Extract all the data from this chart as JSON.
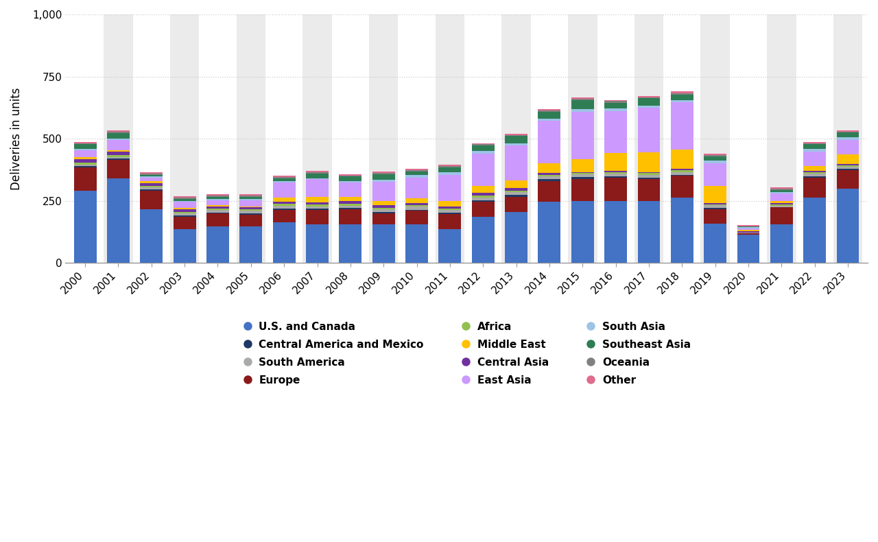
{
  "years": [
    2000,
    2001,
    2002,
    2003,
    2004,
    2005,
    2006,
    2007,
    2008,
    2009,
    2010,
    2011,
    2012,
    2013,
    2014,
    2015,
    2016,
    2017,
    2018,
    2019,
    2020,
    2021,
    2022,
    2023
  ],
  "stack_order": [
    "U.S. and Canada",
    "Europe",
    "Central America and Mexico",
    "South America",
    "Africa",
    "Central Asia",
    "Middle East",
    "East Asia",
    "South Asia",
    "Southeast Asia",
    "Oceania",
    "Other"
  ],
  "legend_order": [
    "U.S. and Canada",
    "Central America and Mexico",
    "South America",
    "Europe",
    "Africa",
    "Middle East",
    "Central Asia",
    "East Asia",
    "South Asia",
    "Southeast Asia",
    "Oceania",
    "Other"
  ],
  "colors": {
    "U.S. and Canada": "#4472C4",
    "Europe": "#8B1A1A",
    "Central America and Mexico": "#1F3864",
    "South America": "#AAAAAA",
    "Africa": "#92C050",
    "Central Asia": "#7030A0",
    "Middle East": "#FFC000",
    "East Asia": "#CC99FF",
    "South Asia": "#9DC3E6",
    "Southeast Asia": "#2E7D55",
    "Oceania": "#808080",
    "Other": "#E06C8E"
  },
  "data": {
    "U.S. and Canada": [
      290,
      340,
      215,
      135,
      148,
      147,
      162,
      155,
      155,
      155,
      154,
      136,
      185,
      205,
      245,
      248,
      248,
      250,
      262,
      158,
      113,
      155,
      262,
      298
    ],
    "Europe": [
      95,
      75,
      75,
      50,
      50,
      48,
      52,
      58,
      60,
      45,
      55,
      60,
      62,
      60,
      85,
      90,
      95,
      88,
      88,
      58,
      5,
      70,
      82,
      75
    ],
    "Central America and Mexico": [
      5,
      5,
      5,
      5,
      5,
      5,
      5,
      5,
      5,
      5,
      5,
      5,
      5,
      8,
      8,
      8,
      5,
      5,
      5,
      5,
      0,
      0,
      5,
      5
    ],
    "South America": [
      5,
      5,
      10,
      10,
      10,
      10,
      10,
      10,
      10,
      12,
      12,
      12,
      12,
      12,
      10,
      10,
      10,
      10,
      10,
      10,
      5,
      5,
      10,
      10
    ],
    "Africa": [
      8,
      8,
      5,
      5,
      5,
      5,
      8,
      8,
      8,
      5,
      5,
      5,
      8,
      5,
      5,
      5,
      8,
      8,
      8,
      5,
      0,
      5,
      5,
      5
    ],
    "Central Asia": [
      15,
      15,
      10,
      10,
      10,
      8,
      8,
      8,
      10,
      10,
      10,
      10,
      10,
      10,
      10,
      5,
      5,
      5,
      5,
      5,
      5,
      5,
      5,
      5
    ],
    "Middle East": [
      8,
      5,
      10,
      5,
      5,
      5,
      18,
      22,
      18,
      18,
      18,
      22,
      28,
      32,
      38,
      52,
      72,
      78,
      78,
      68,
      5,
      10,
      22,
      38
    ],
    "East Asia": [
      28,
      42,
      12,
      25,
      20,
      25,
      60,
      70,
      58,
      75,
      85,
      105,
      130,
      140,
      170,
      190,
      168,
      180,
      190,
      92,
      5,
      30,
      58,
      60
    ],
    "South Asia": [
      5,
      5,
      5,
      5,
      5,
      5,
      5,
      5,
      5,
      10,
      10,
      10,
      10,
      10,
      10,
      10,
      10,
      10,
      10,
      10,
      5,
      5,
      10,
      10
    ],
    "Southeast Asia": [
      18,
      22,
      8,
      8,
      8,
      8,
      12,
      18,
      18,
      22,
      14,
      18,
      22,
      28,
      28,
      38,
      22,
      28,
      22,
      18,
      5,
      8,
      18,
      18
    ],
    "Oceania": [
      5,
      5,
      5,
      5,
      5,
      5,
      5,
      5,
      5,
      5,
      5,
      8,
      5,
      5,
      5,
      5,
      8,
      5,
      5,
      5,
      0,
      5,
      5,
      5
    ],
    "Other": [
      5,
      5,
      5,
      5,
      5,
      5,
      5,
      5,
      5,
      5,
      5,
      5,
      5,
      5,
      5,
      5,
      5,
      5,
      8,
      5,
      5,
      5,
      5,
      5
    ]
  },
  "ylabel": "Deliveries in units",
  "ylim": [
    0,
    1000
  ],
  "yticks": [
    0,
    250,
    500,
    750,
    1000
  ],
  "background_color": "#FFFFFF",
  "grid_color": "#CCCCCC",
  "alt_band_color": "#EBEBEB"
}
